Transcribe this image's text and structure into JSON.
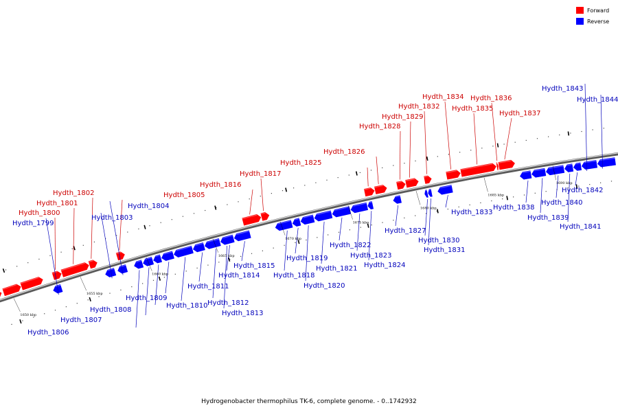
{
  "caption": "Hydrogenobacter thermophilus TK-6, complete genome. - 0..1742932",
  "legend": [
    {
      "label": "Forward",
      "color": "#ff0000"
    },
    {
      "label": "Reverse",
      "color": "#0000ff"
    }
  ],
  "colors": {
    "forward": "#ff0000",
    "reverse": "#0000ff",
    "backbone": "#777777",
    "label_forward": "#cc0000",
    "label_reverse": "#0000bb"
  },
  "scale_labels": [
    "1650 kbp",
    "1655 kbp",
    "1660 kbp",
    "1665 kbp",
    "1670 kbp",
    "1675 kbp",
    "1680 kbp",
    "1685 kbp",
    "1690 kbp"
  ],
  "genes": [
    {
      "name": "Hydth_1799",
      "strand": "reverse"
    },
    {
      "name": "Hydth_1800",
      "strand": "forward"
    },
    {
      "name": "Hydth_1801",
      "strand": "forward"
    },
    {
      "name": "Hydth_1802",
      "strand": "forward"
    },
    {
      "name": "Hydth_1803",
      "strand": "reverse"
    },
    {
      "name": "Hydth_1804",
      "strand": "reverse"
    },
    {
      "name": "Hydth_1805",
      "strand": "forward"
    },
    {
      "name": "Hydth_1806",
      "strand": "reverse"
    },
    {
      "name": "Hydth_1807",
      "strand": "reverse"
    },
    {
      "name": "Hydth_1808",
      "strand": "reverse"
    },
    {
      "name": "Hydth_1809",
      "strand": "reverse"
    },
    {
      "name": "Hydth_1810",
      "strand": "reverse"
    },
    {
      "name": "Hydth_1811",
      "strand": "reverse"
    },
    {
      "name": "Hydth_1812",
      "strand": "reverse"
    },
    {
      "name": "Hydth_1813",
      "strand": "reverse"
    },
    {
      "name": "Hydth_1814",
      "strand": "reverse"
    },
    {
      "name": "Hydth_1815",
      "strand": "reverse"
    },
    {
      "name": "Hydth_1816",
      "strand": "forward"
    },
    {
      "name": "Hydth_1817",
      "strand": "forward"
    },
    {
      "name": "Hydth_1818",
      "strand": "reverse"
    },
    {
      "name": "Hydth_1819",
      "strand": "reverse"
    },
    {
      "name": "Hydth_1820",
      "strand": "reverse"
    },
    {
      "name": "Hydth_1821",
      "strand": "reverse"
    },
    {
      "name": "Hydth_1822",
      "strand": "reverse"
    },
    {
      "name": "Hydth_1823",
      "strand": "reverse"
    },
    {
      "name": "Hydth_1824",
      "strand": "reverse"
    },
    {
      "name": "Hydth_1825",
      "strand": "forward"
    },
    {
      "name": "Hydth_1826",
      "strand": "forward"
    },
    {
      "name": "Hydth_1827",
      "strand": "reverse"
    },
    {
      "name": "Hydth_1828",
      "strand": "forward"
    },
    {
      "name": "Hydth_1829",
      "strand": "forward"
    },
    {
      "name": "Hydth_1830",
      "strand": "reverse"
    },
    {
      "name": "Hydth_1831",
      "strand": "reverse"
    },
    {
      "name": "Hydth_1832",
      "strand": "forward"
    },
    {
      "name": "Hydth_1833",
      "strand": "reverse"
    },
    {
      "name": "Hydth_1834",
      "strand": "forward"
    },
    {
      "name": "Hydth_1835",
      "strand": "forward"
    },
    {
      "name": "Hydth_1836",
      "strand": "forward"
    },
    {
      "name": "Hydth_1837",
      "strand": "forward"
    },
    {
      "name": "Hydth_1838",
      "strand": "reverse"
    },
    {
      "name": "Hydth_1839",
      "strand": "reverse"
    },
    {
      "name": "Hydth_1840",
      "strand": "reverse"
    },
    {
      "name": "Hydth_1841",
      "strand": "reverse"
    },
    {
      "name": "Hydth_1842",
      "strand": "reverse"
    },
    {
      "name": "Hydth_1843",
      "strand": "reverse"
    },
    {
      "name": "Hydth_1844",
      "strand": "reverse"
    }
  ]
}
